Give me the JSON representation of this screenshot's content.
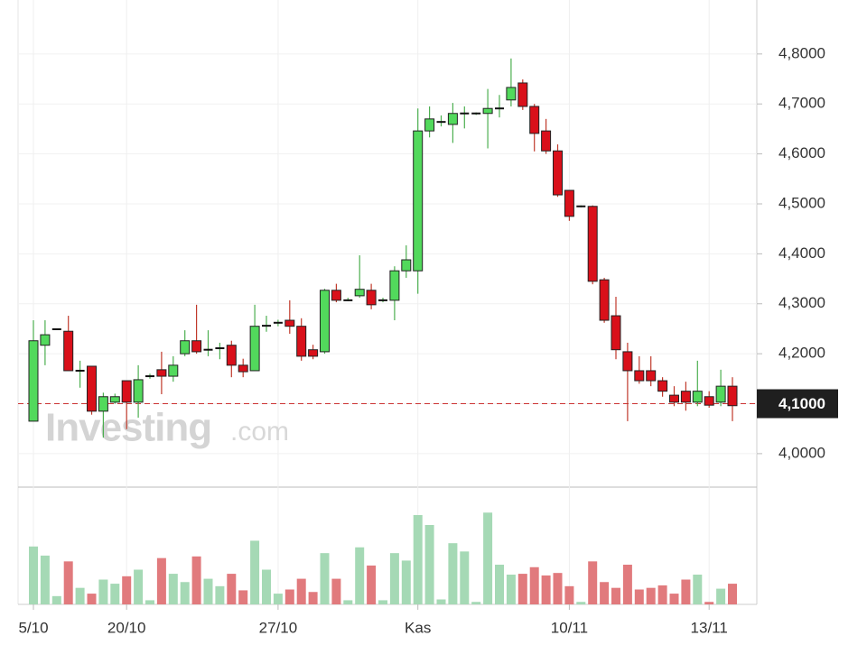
{
  "chart_data": [
    {
      "type": "candlestick",
      "categories": [
        "5/10",
        null,
        null,
        null,
        null,
        null,
        null,
        null,
        "20/10",
        null,
        null,
        null,
        null,
        null,
        null,
        null,
        null,
        null,
        null,
        null,
        null,
        "27/10",
        null,
        null,
        null,
        null,
        null,
        null,
        null,
        null,
        null,
        null,
        null,
        "Kas",
        null,
        null,
        null,
        null,
        null,
        null,
        null,
        null,
        null,
        null,
        null,
        null,
        "10/11",
        null,
        null,
        null,
        null,
        null,
        null,
        null,
        null,
        null,
        null,
        null,
        "13/11",
        null,
        null
      ],
      "open": [
        4.065,
        4.217,
        4.249,
        4.245,
        4.166,
        4.175,
        4.085,
        4.103,
        4.146,
        4.103,
        4.155,
        4.168,
        4.155,
        4.2,
        4.226,
        4.208,
        4.211,
        4.217,
        4.177,
        4.166,
        4.256,
        4.262,
        4.267,
        4.255,
        4.208,
        4.204,
        4.327,
        4.307,
        4.316,
        4.327,
        4.307,
        4.307,
        4.366,
        4.366,
        4.646,
        4.664,
        4.659,
        4.681,
        4.681,
        4.681,
        4.691,
        4.708,
        4.742,
        4.695,
        4.646,
        4.606,
        4.527,
        4.495,
        4.495,
        4.348,
        4.276,
        4.204,
        4.166,
        4.166,
        4.146,
        4.117,
        4.125,
        4.103,
        4.114,
        4.103,
        4.135
      ],
      "close": [
        4.226,
        4.238,
        4.249,
        4.166,
        4.166,
        4.085,
        4.114,
        4.114,
        4.103,
        4.148,
        4.155,
        4.155,
        4.177,
        4.226,
        4.204,
        4.208,
        4.211,
        4.177,
        4.164,
        4.255,
        4.256,
        4.262,
        4.255,
        4.195,
        4.195,
        4.327,
        4.307,
        4.307,
        4.329,
        4.298,
        4.307,
        4.366,
        4.388,
        4.646,
        4.67,
        4.664,
        4.681,
        4.681,
        4.681,
        4.691,
        4.691,
        4.733,
        4.695,
        4.641,
        4.606,
        4.518,
        4.475,
        4.495,
        4.345,
        4.267,
        4.208,
        4.166,
        4.146,
        4.146,
        4.125,
        4.103,
        4.103,
        4.125,
        4.097,
        4.135,
        4.096
      ],
      "high": [
        4.267,
        4.267,
        4.25,
        4.276,
        4.186,
        4.175,
        4.122,
        4.12,
        4.146,
        4.177,
        4.16,
        4.204,
        4.195,
        4.247,
        4.298,
        4.247,
        4.222,
        4.226,
        4.19,
        4.298,
        4.276,
        4.268,
        4.307,
        4.271,
        4.218,
        4.33,
        4.34,
        4.312,
        4.397,
        4.34,
        4.312,
        4.375,
        4.417,
        4.691,
        4.695,
        4.677,
        4.702,
        4.695,
        4.683,
        4.73,
        4.718,
        4.791,
        4.749,
        4.7,
        4.67,
        4.619,
        4.527,
        4.497,
        4.497,
        4.352,
        4.314,
        4.222,
        4.195,
        4.195,
        4.153,
        4.135,
        4.144,
        4.186,
        4.125,
        4.168,
        4.153
      ],
      "low": [
        4.065,
        4.177,
        4.248,
        4.166,
        4.132,
        4.078,
        4.032,
        4.1,
        4.049,
        4.072,
        4.15,
        4.119,
        4.144,
        4.195,
        4.2,
        4.195,
        4.189,
        4.153,
        4.153,
        4.166,
        4.244,
        4.255,
        4.24,
        4.186,
        4.189,
        4.2,
        4.303,
        4.305,
        4.312,
        4.289,
        4.303,
        4.267,
        4.352,
        4.32,
        4.633,
        4.655,
        4.622,
        4.651,
        4.678,
        4.611,
        4.673,
        4.695,
        4.688,
        4.605,
        4.6,
        4.514,
        4.466,
        4.493,
        4.339,
        4.262,
        4.189,
        4.065,
        4.14,
        4.135,
        4.114,
        4.095,
        4.086,
        4.095,
        4.092,
        4.095,
        4.065
      ],
      "up_color": "#52d95c",
      "down_color": "#d9101a",
      "ylim": [
        3.933,
        4.89
      ],
      "yticks": [
        {
          "value": 4.0,
          "label": "4,0000"
        },
        {
          "value": 4.1,
          "label": "4,1000"
        },
        {
          "value": 4.2,
          "label": "4,2000"
        },
        {
          "value": 4.3,
          "label": "4,3000"
        },
        {
          "value": 4.4,
          "label": "4,4000"
        },
        {
          "value": 4.5,
          "label": "4,5000"
        },
        {
          "value": 4.6,
          "label": "4,6000"
        },
        {
          "value": 4.7,
          "label": "4,7000"
        },
        {
          "value": 4.8,
          "label": "4,8000"
        }
      ],
      "price_line": {
        "value": 4.1,
        "label": "4,1000"
      },
      "watermark": "Investing",
      "watermark_suffix": ".com",
      "grid": true
    },
    {
      "type": "bar",
      "values": [
        70,
        59,
        10,
        52,
        20,
        13,
        30,
        25,
        34,
        42,
        5,
        56,
        37,
        27,
        58,
        31,
        22,
        37,
        17,
        77,
        42,
        13,
        18,
        31,
        15,
        62,
        31,
        5,
        69,
        47,
        5,
        62,
        53,
        108,
        96,
        6,
        74,
        64,
        3,
        111,
        48,
        36,
        37,
        45,
        35,
        38,
        22,
        3,
        52,
        27,
        20,
        48,
        18,
        20,
        23,
        13,
        30,
        36,
        3,
        19,
        25
      ],
      "up_color": "#a5d9b5",
      "down_color": "#e17a7d",
      "ylim": [
        0,
        120
      ]
    }
  ]
}
